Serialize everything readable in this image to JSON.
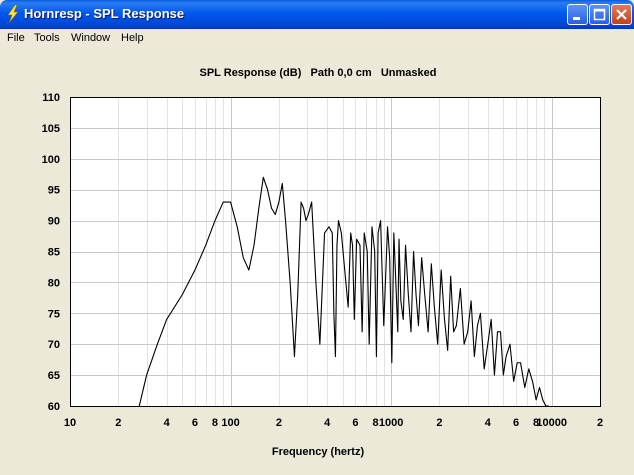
{
  "window": {
    "title": "Hornresp - SPL Response",
    "icon": "lightning-icon",
    "controls": [
      "minimize-icon",
      "maximize-icon",
      "close-icon"
    ]
  },
  "menu": {
    "items": [
      {
        "label": "File",
        "name": "menu-file"
      },
      {
        "label": "Tools",
        "name": "menu-tools"
      },
      {
        "label": "Window",
        "name": "menu-window"
      },
      {
        "label": "Help",
        "name": "menu-help"
      }
    ]
  },
  "colors": {
    "titlebar": "#0058EE",
    "background": "#ECE9D8",
    "plot_background": "#FFFFFF",
    "grid_major": "#C8C8C8",
    "grid_minor": "#E2E2E2",
    "trace": "#000000"
  },
  "chart_data": {
    "type": "line",
    "title": "SPL Response (dB)   Path 0,0 cm   Unmasked",
    "xlabel": "Frequency (hertz)",
    "ylabel": "",
    "x_scale": "log",
    "xlim": [
      10,
      20000
    ],
    "ylim": [
      60,
      110
    ],
    "grid": true,
    "y_ticks": [
      {
        "value": 60,
        "label": "60"
      },
      {
        "value": 65,
        "label": "65"
      },
      {
        "value": 70,
        "label": "70"
      },
      {
        "value": 75,
        "label": "75"
      },
      {
        "value": 80,
        "label": "80"
      },
      {
        "value": 85,
        "label": "85"
      },
      {
        "value": 90,
        "label": "90"
      },
      {
        "value": 95,
        "label": "95"
      },
      {
        "value": 100,
        "label": "100"
      },
      {
        "value": 105,
        "label": "105"
      },
      {
        "value": 110,
        "label": "110"
      }
    ],
    "x_ticks": [
      {
        "value": 10,
        "label": "10"
      },
      {
        "value": 20,
        "label": "2"
      },
      {
        "value": 40,
        "label": "4"
      },
      {
        "value": 60,
        "label": "6"
      },
      {
        "value": 80,
        "label": "8"
      },
      {
        "value": 100,
        "label": "100"
      },
      {
        "value": 200,
        "label": "2"
      },
      {
        "value": 400,
        "label": "4"
      },
      {
        "value": 600,
        "label": "6"
      },
      {
        "value": 800,
        "label": "8"
      },
      {
        "value": 1000,
        "label": "1000"
      },
      {
        "value": 2000,
        "label": "2"
      },
      {
        "value": 4000,
        "label": "4"
      },
      {
        "value": 6000,
        "label": "6"
      },
      {
        "value": 8000,
        "label": "8"
      },
      {
        "value": 10000,
        "label": "10000"
      },
      {
        "value": 20000,
        "label": "2"
      }
    ],
    "series": [
      {
        "x": [
          27,
          30,
          35,
          40,
          50,
          60,
          70,
          80,
          90,
          100,
          110,
          120,
          130,
          140,
          150,
          160,
          170,
          180,
          190,
          200,
          210,
          220,
          235,
          250,
          262,
          275,
          285,
          295,
          305,
          320,
          340,
          360,
          385,
          410,
          430,
          440,
          450,
          460,
          470,
          490,
          510,
          540,
          560,
          575,
          590,
          610,
          640,
          660,
          680,
          710,
          730,
          760,
          790,
          810,
          830,
          860,
          900,
          950,
          980,
          1010,
          1040,
          1070,
          1100,
          1120,
          1150,
          1190,
          1230,
          1280,
          1330,
          1380,
          1430,
          1480,
          1550,
          1620,
          1700,
          1780,
          1860,
          1950,
          2050,
          2150,
          2250,
          2350,
          2450,
          2550,
          2700,
          2850,
          3000,
          3150,
          3300,
          3450,
          3600,
          3800,
          4000,
          4200,
          4400,
          4600,
          4800,
          5000,
          5200,
          5500,
          5800,
          6100,
          6400,
          6800,
          7200,
          7600,
          8000,
          8400,
          8800,
          9200,
          9600
        ],
        "y": [
          60,
          65,
          70,
          74,
          78,
          82,
          86,
          90,
          93,
          93,
          89,
          84,
          82,
          86,
          92,
          97,
          95,
          92,
          91,
          93,
          96,
          90,
          80,
          68,
          78,
          93,
          92,
          90,
          91,
          93,
          80,
          70,
          88,
          89,
          88,
          75,
          68,
          86,
          90,
          88,
          83,
          76,
          88,
          86,
          74,
          87,
          86,
          72,
          88,
          85,
          70,
          89,
          85,
          68,
          88,
          90,
          73,
          89,
          84,
          67,
          88,
          80,
          72,
          87,
          77,
          74,
          86,
          78,
          72,
          85,
          78,
          73,
          84,
          78,
          72,
          83,
          76,
          70,
          82,
          74,
          69,
          81,
          72,
          73,
          79,
          70,
          72,
          77,
          68,
          73,
          75,
          66,
          70,
          74,
          65,
          72,
          72,
          65,
          68,
          70,
          64,
          67,
          67,
          63,
          66,
          64,
          61,
          63,
          61,
          60,
          60
        ]
      }
    ]
  }
}
